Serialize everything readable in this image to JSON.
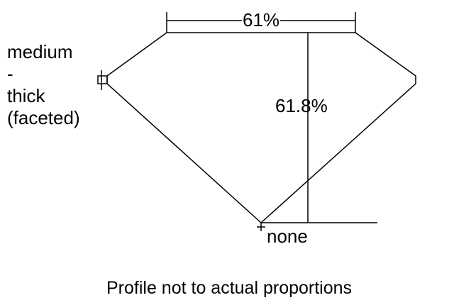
{
  "diagram": {
    "table_width": "61%",
    "total_depth": "61.8%",
    "girdle_label": [
      "medium",
      "-",
      "thick",
      "(faceted)"
    ],
    "culet_label": "none",
    "note": "Profile not to actual proportions",
    "line_color": "#000000",
    "background": "#ffffff"
  }
}
